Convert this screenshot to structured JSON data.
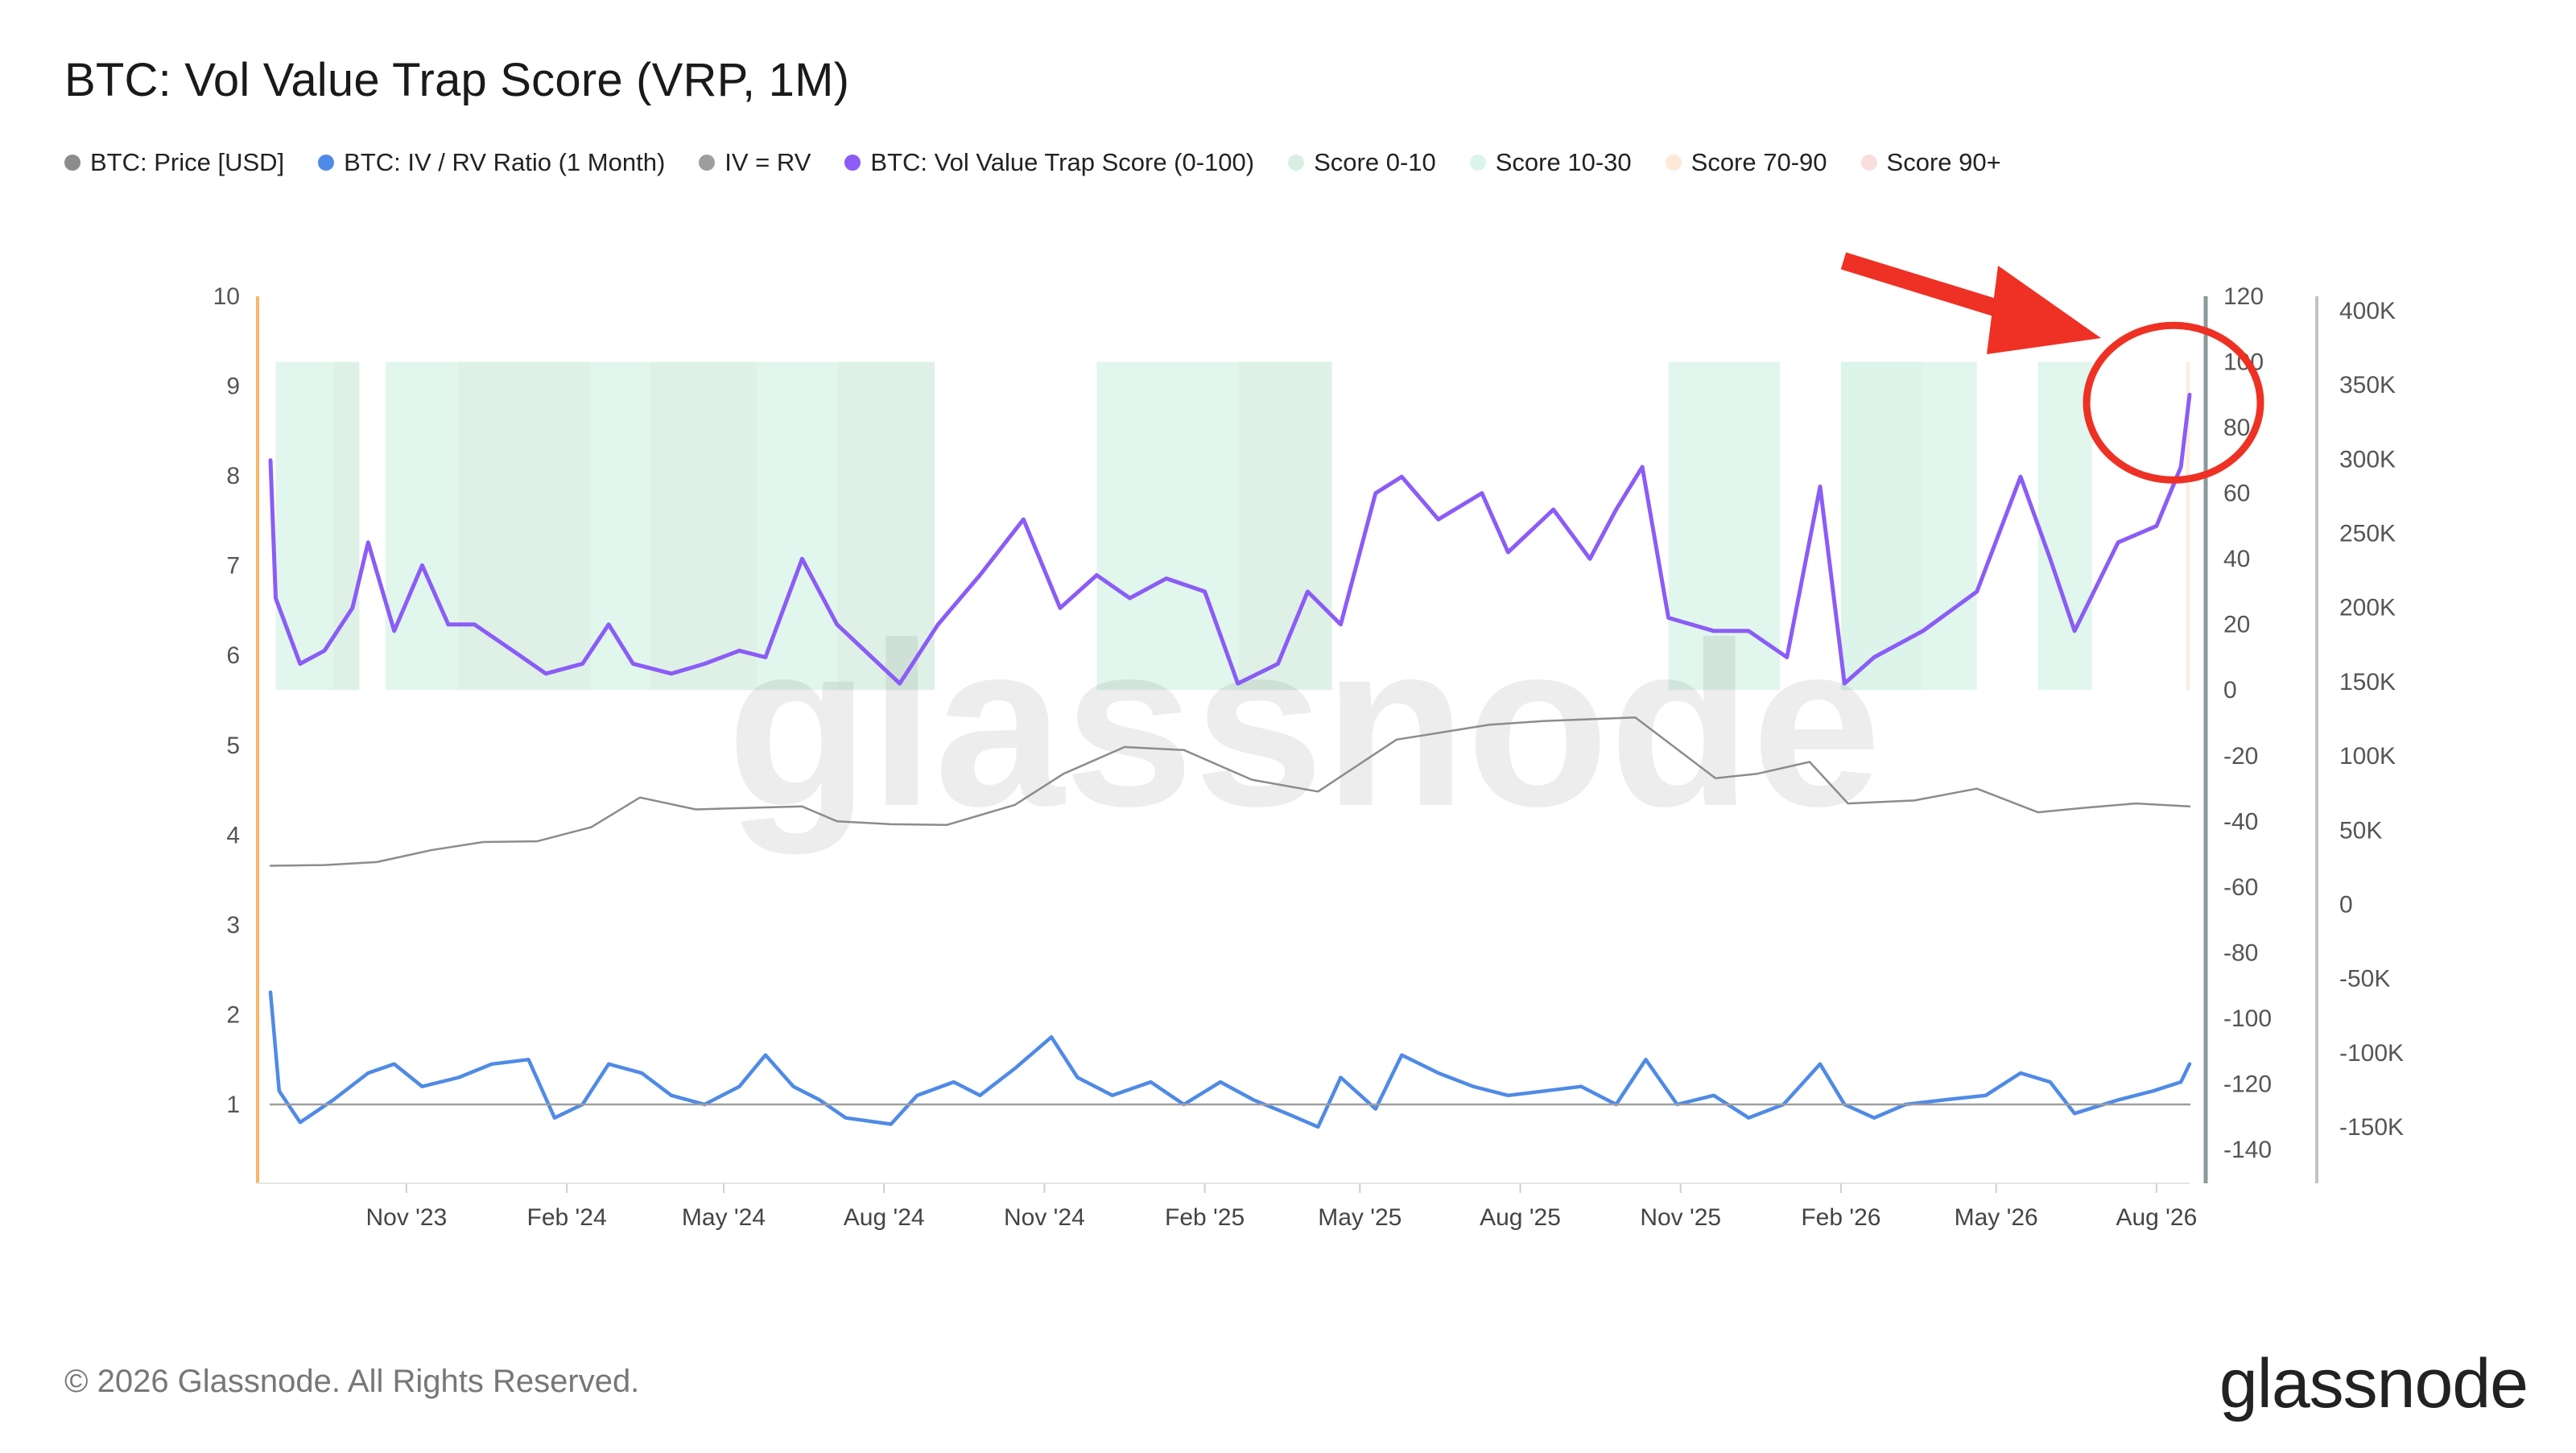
{
  "header": {
    "title": "BTC: Vol Value Trap Score (VRP, 1M)"
  },
  "legend": [
    {
      "label": "BTC: Price [USD]",
      "color": "#8c8c8c",
      "icon": "dot-icon"
    },
    {
      "label": "BTC: IV / RV Ratio (1 Month)",
      "color": "#4f8ae6",
      "icon": "dot-icon"
    },
    {
      "label": "IV = RV",
      "color": "#9e9e9e",
      "icon": "dot-icon"
    },
    {
      "label": "BTC: Vol Value Trap Score (0-100)",
      "color": "#8b5cf6",
      "icon": "dot-icon"
    },
    {
      "label": "Score 0-10",
      "color": "#d9efe3",
      "icon": "dot-icon"
    },
    {
      "label": "Score 10-30",
      "color": "#dcf5ea",
      "icon": "dot-icon"
    },
    {
      "label": "Score 70-90",
      "color": "#fde9d6",
      "icon": "dot-icon"
    },
    {
      "label": "Score 90+",
      "color": "#f9dede",
      "icon": "dot-icon"
    }
  ],
  "watermark": "glassnode",
  "footer": {
    "copyright": "© 2026 Glassnode. All Rights Reserved.",
    "brand": "glassnode"
  },
  "annotation": {
    "arrow_color": "#ee3124",
    "circle_color": "#ee3124",
    "target": "latest score spike"
  },
  "chart_data": {
    "type": "line",
    "x_ticks": [
      "Nov '23",
      "Feb '24",
      "May '24",
      "Aug '24",
      "Nov '24",
      "Feb '25",
      "May '25",
      "Aug '25",
      "Nov '25",
      "Feb '26",
      "May '26",
      "Aug '26"
    ],
    "x_range": [
      "2023-08-15",
      "2026-08-20"
    ],
    "axes": {
      "left": {
        "ticks": [
          "1",
          "2",
          "3",
          "4",
          "5",
          "6",
          "7",
          "8",
          "9",
          "10"
        ],
        "range": [
          0.1,
          10
        ]
      },
      "right_inner": {
        "ticks": [
          "120",
          "100",
          "80",
          "60",
          "40",
          "20",
          "0",
          "-20",
          "-40",
          "-60",
          "-80",
          "-100",
          "-120",
          "-140"
        ],
        "range": [
          -150,
          120
        ]
      },
      "right_outer": {
        "ticks": [
          "400K",
          "350K",
          "300K",
          "250K",
          "200K",
          "150K",
          "100K",
          "50K",
          "0",
          "-50K",
          "-100K",
          "-150K"
        ],
        "range": [
          -170000,
          410000
        ]
      }
    },
    "grid": false,
    "series": [
      {
        "name": "BTC: Price [USD]",
        "axis": "right_outer",
        "color": "#8c8c8c",
        "points": [
          [
            "2023-08-15",
            26000
          ],
          [
            "2023-09-15",
            26500
          ],
          [
            "2023-10-15",
            28500
          ],
          [
            "2023-11-15",
            36500
          ],
          [
            "2023-12-15",
            42000
          ],
          [
            "2024-01-15",
            42500
          ],
          [
            "2024-02-15",
            52000
          ],
          [
            "2024-03-14",
            72000
          ],
          [
            "2024-04-15",
            64000
          ],
          [
            "2024-05-15",
            65000
          ],
          [
            "2024-06-15",
            66000
          ],
          [
            "2024-07-05",
            56000
          ],
          [
            "2024-08-05",
            54000
          ],
          [
            "2024-09-06",
            53500
          ],
          [
            "2024-10-15",
            67000
          ],
          [
            "2024-11-12",
            88000
          ],
          [
            "2024-12-17",
            106000
          ],
          [
            "2025-01-20",
            104000
          ],
          [
            "2025-02-28",
            84000
          ],
          [
            "2025-04-07",
            76000
          ],
          [
            "2025-05-22",
            111000
          ],
          [
            "2025-07-14",
            121000
          ],
          [
            "2025-08-14",
            123500
          ],
          [
            "2025-10-06",
            126000
          ],
          [
            "2025-11-21",
            85000
          ],
          [
            "2025-12-15",
            88000
          ],
          [
            "2026-01-14",
            96000
          ],
          [
            "2026-02-05",
            68000
          ],
          [
            "2026-03-15",
            70000
          ],
          [
            "2026-04-20",
            78000
          ],
          [
            "2026-05-25",
            62000
          ],
          [
            "2026-06-20",
            65000
          ],
          [
            "2026-07-20",
            68000
          ],
          [
            "2026-08-20",
            66000
          ]
        ]
      },
      {
        "name": "BTC: IV / RV Ratio (1 Month)",
        "axis": "left",
        "color": "#4f8ae6",
        "points": [
          [
            "2023-08-15",
            2.25
          ],
          [
            "2023-08-20",
            1.15
          ],
          [
            "2023-09-01",
            0.8
          ],
          [
            "2023-09-20",
            1.05
          ],
          [
            "2023-10-10",
            1.35
          ],
          [
            "2023-10-25",
            1.45
          ],
          [
            "2023-11-10",
            1.2
          ],
          [
            "2023-12-01",
            1.3
          ],
          [
            "2023-12-20",
            1.45
          ],
          [
            "2024-01-10",
            1.5
          ],
          [
            "2024-01-25",
            0.85
          ],
          [
            "2024-02-10",
            1.0
          ],
          [
            "2024-02-25",
            1.45
          ],
          [
            "2024-03-15",
            1.35
          ],
          [
            "2024-04-01",
            1.1
          ],
          [
            "2024-04-20",
            1.0
          ],
          [
            "2024-05-10",
            1.2
          ],
          [
            "2024-05-25",
            1.55
          ],
          [
            "2024-06-10",
            1.2
          ],
          [
            "2024-06-25",
            1.05
          ],
          [
            "2024-07-10",
            0.85
          ],
          [
            "2024-08-05",
            0.78
          ],
          [
            "2024-08-20",
            1.1
          ],
          [
            "2024-09-10",
            1.25
          ],
          [
            "2024-09-25",
            1.1
          ],
          [
            "2024-10-15",
            1.4
          ],
          [
            "2024-11-05",
            1.75
          ],
          [
            "2024-11-20",
            1.3
          ],
          [
            "2024-12-10",
            1.1
          ],
          [
            "2025-01-01",
            1.25
          ],
          [
            "2025-01-20",
            1.0
          ],
          [
            "2025-02-10",
            1.25
          ],
          [
            "2025-03-01",
            1.05
          ],
          [
            "2025-03-20",
            0.9
          ],
          [
            "2025-04-07",
            0.75
          ],
          [
            "2025-04-20",
            1.3
          ],
          [
            "2025-05-10",
            0.95
          ],
          [
            "2025-05-25",
            1.55
          ],
          [
            "2025-06-15",
            1.35
          ],
          [
            "2025-07-05",
            1.2
          ],
          [
            "2025-07-25",
            1.1
          ],
          [
            "2025-08-15",
            1.15
          ],
          [
            "2025-09-05",
            1.2
          ],
          [
            "2025-09-25",
            1.0
          ],
          [
            "2025-10-12",
            1.5
          ],
          [
            "2025-10-30",
            1.0
          ],
          [
            "2025-11-20",
            1.1
          ],
          [
            "2025-12-10",
            0.85
          ],
          [
            "2025-12-30",
            1.0
          ],
          [
            "2026-01-20",
            1.45
          ],
          [
            "2026-02-03",
            1.0
          ],
          [
            "2026-02-20",
            0.85
          ],
          [
            "2026-03-10",
            1.0
          ],
          [
            "2026-04-01",
            1.05
          ],
          [
            "2026-04-25",
            1.1
          ],
          [
            "2026-05-15",
            1.35
          ],
          [
            "2026-06-01",
            1.25
          ],
          [
            "2026-06-15",
            0.9
          ],
          [
            "2026-07-10",
            1.05
          ],
          [
            "2026-07-30",
            1.15
          ],
          [
            "2026-08-15",
            1.25
          ],
          [
            "2026-08-20",
            1.45
          ]
        ]
      },
      {
        "name": "IV = RV",
        "axis": "left",
        "color": "#9e9e9e",
        "points": [
          [
            "2023-08-15",
            1
          ],
          [
            "2026-08-20",
            1
          ]
        ]
      },
      {
        "name": "BTC: Vol Value Trap Score (0-100)",
        "axis": "right_inner",
        "color": "#8b5cf6",
        "points": [
          [
            "2023-08-15",
            70
          ],
          [
            "2023-08-18",
            28
          ],
          [
            "2023-09-01",
            8
          ],
          [
            "2023-09-15",
            12
          ],
          [
            "2023-10-01",
            25
          ],
          [
            "2023-10-10",
            45
          ],
          [
            "2023-10-25",
            18
          ],
          [
            "2023-11-10",
            38
          ],
          [
            "2023-11-25",
            20
          ],
          [
            "2023-12-10",
            20
          ],
          [
            "2024-01-01",
            12
          ],
          [
            "2024-01-20",
            5
          ],
          [
            "2024-02-10",
            8
          ],
          [
            "2024-02-25",
            20
          ],
          [
            "2024-03-10",
            8
          ],
          [
            "2024-04-01",
            5
          ],
          [
            "2024-04-20",
            8
          ],
          [
            "2024-05-10",
            12
          ],
          [
            "2024-05-25",
            10
          ],
          [
            "2024-06-15",
            40
          ],
          [
            "2024-07-05",
            20
          ],
          [
            "2024-07-25",
            10
          ],
          [
            "2024-08-10",
            2
          ],
          [
            "2024-09-01",
            20
          ],
          [
            "2024-09-25",
            35
          ],
          [
            "2024-10-20",
            52
          ],
          [
            "2024-11-10",
            25
          ],
          [
            "2024-12-01",
            35
          ],
          [
            "2024-12-20",
            28
          ],
          [
            "2025-01-10",
            34
          ],
          [
            "2025-02-01",
            30
          ],
          [
            "2025-02-20",
            2
          ],
          [
            "2025-03-15",
            8
          ],
          [
            "2025-04-01",
            30
          ],
          [
            "2025-04-20",
            20
          ],
          [
            "2025-05-10",
            60
          ],
          [
            "2025-05-25",
            65
          ],
          [
            "2025-06-15",
            52
          ],
          [
            "2025-07-10",
            60
          ],
          [
            "2025-07-25",
            42
          ],
          [
            "2025-08-20",
            55
          ],
          [
            "2025-09-10",
            40
          ],
          [
            "2025-09-25",
            55
          ],
          [
            "2025-10-10",
            68
          ],
          [
            "2025-10-25",
            22
          ],
          [
            "2025-11-20",
            18
          ],
          [
            "2025-12-10",
            18
          ],
          [
            "2026-01-01",
            10
          ],
          [
            "2026-01-20",
            62
          ],
          [
            "2026-02-03",
            2
          ],
          [
            "2026-02-20",
            10
          ],
          [
            "2026-03-20",
            18
          ],
          [
            "2026-04-20",
            30
          ],
          [
            "2026-05-15",
            65
          ],
          [
            "2026-06-01",
            40
          ],
          [
            "2026-06-15",
            18
          ],
          [
            "2026-07-10",
            45
          ],
          [
            "2026-08-01",
            50
          ],
          [
            "2026-08-15",
            68
          ],
          [
            "2026-08-20",
            90
          ]
        ]
      }
    ],
    "score_bands": [
      {
        "name": "Score 0-10",
        "color": "#d9efe3",
        "ranges": [
          [
            "2023-09-20",
            "2023-10-05"
          ],
          [
            "2023-12-01",
            "2024-02-15"
          ],
          [
            "2024-03-20",
            "2024-05-20"
          ],
          [
            "2024-07-05",
            "2024-08-30"
          ],
          [
            "2025-02-20",
            "2025-04-15"
          ],
          [
            "2026-02-01",
            "2026-03-20"
          ]
        ]
      },
      {
        "name": "Score 10-30",
        "color": "#dcf5ea",
        "ranges": [
          [
            "2023-08-18",
            "2023-09-20"
          ],
          [
            "2023-10-20",
            "2023-12-01"
          ],
          [
            "2024-02-15",
            "2024-03-20"
          ],
          [
            "2024-05-20",
            "2024-07-05"
          ],
          [
            "2024-12-01",
            "2025-02-20"
          ],
          [
            "2025-10-25",
            "2025-12-28"
          ],
          [
            "2026-02-01",
            "2026-04-20"
          ],
          [
            "2026-05-25",
            "2026-06-25"
          ]
        ]
      },
      {
        "name": "Score 70-90",
        "color": "#fde9d6",
        "ranges": [
          [
            "2026-08-18",
            "2026-08-20"
          ]
        ]
      },
      {
        "name": "Score 90+",
        "color": "#f9dede",
        "ranges": []
      }
    ]
  }
}
